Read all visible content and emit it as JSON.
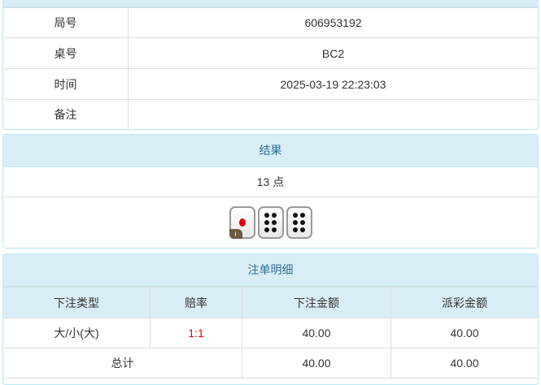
{
  "info": {
    "rows": [
      {
        "label": "局号",
        "value": "606953192"
      },
      {
        "label": "桌号",
        "value": "BC2"
      },
      {
        "label": "时间",
        "value": "2025-03-19 22:23:03"
      },
      {
        "label": "备注",
        "value": ""
      }
    ]
  },
  "result": {
    "title": "结果",
    "points": "13 点",
    "dice": [
      1,
      6,
      6
    ],
    "info_badge": "i"
  },
  "bets": {
    "title": "注单明细",
    "headers": [
      "下注类型",
      "赔率",
      "下注金额",
      "派彩金额"
    ],
    "rows": [
      {
        "type": "大/小(大)",
        "odds": "1:1",
        "amount": "40.00",
        "payout": "40.00"
      }
    ],
    "total": {
      "label": "总计",
      "amount": "40.00",
      "payout": "40.00"
    }
  },
  "colors": {
    "header_bg": "#d9edf7",
    "header_text": "#31708f",
    "odds": "#e00000"
  }
}
